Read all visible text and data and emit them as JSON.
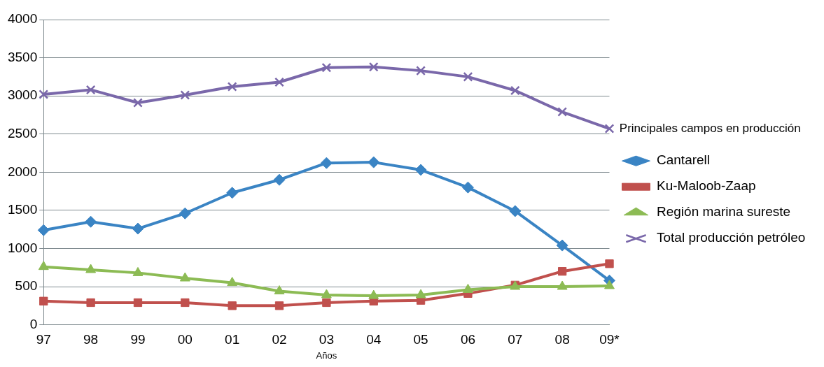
{
  "chart_data": {
    "type": "line",
    "xlabel": "Años",
    "legend_title": "Principales campos en producción",
    "categories": [
      "97",
      "98",
      "99",
      "00",
      "01",
      "02",
      "03",
      "04",
      "05",
      "06",
      "07",
      "08",
      "09*"
    ],
    "series": [
      {
        "name": "Cantarell",
        "color": "#3a84c4",
        "marker": "diamond",
        "values": [
          1240,
          1350,
          1260,
          1460,
          1730,
          1900,
          2120,
          2130,
          2030,
          1800,
          1490,
          1040,
          580
        ]
      },
      {
        "name": "Ku-Maloob-Zaap",
        "color": "#c0504d",
        "marker": "square",
        "values": [
          310,
          290,
          290,
          290,
          250,
          250,
          290,
          310,
          320,
          410,
          520,
          700,
          800
        ]
      },
      {
        "name": "Región marina sureste",
        "color": "#8cbb54",
        "marker": "triangle",
        "values": [
          760,
          720,
          680,
          610,
          550,
          440,
          390,
          380,
          390,
          460,
          500,
          500,
          510
        ]
      },
      {
        "name": "Total producción petróleo",
        "color": "#7a68aa",
        "marker": "cross",
        "values": [
          3020,
          3080,
          2910,
          3010,
          3120,
          3180,
          3370,
          3380,
          3330,
          3250,
          3070,
          2790,
          2570
        ]
      }
    ],
    "ylim": [
      0,
      4000
    ],
    "yticks": [
      0,
      500,
      1000,
      1500,
      2000,
      2500,
      3000,
      3500,
      4000
    ],
    "grid": "y",
    "legend": "right",
    "line_style": "solid"
  }
}
